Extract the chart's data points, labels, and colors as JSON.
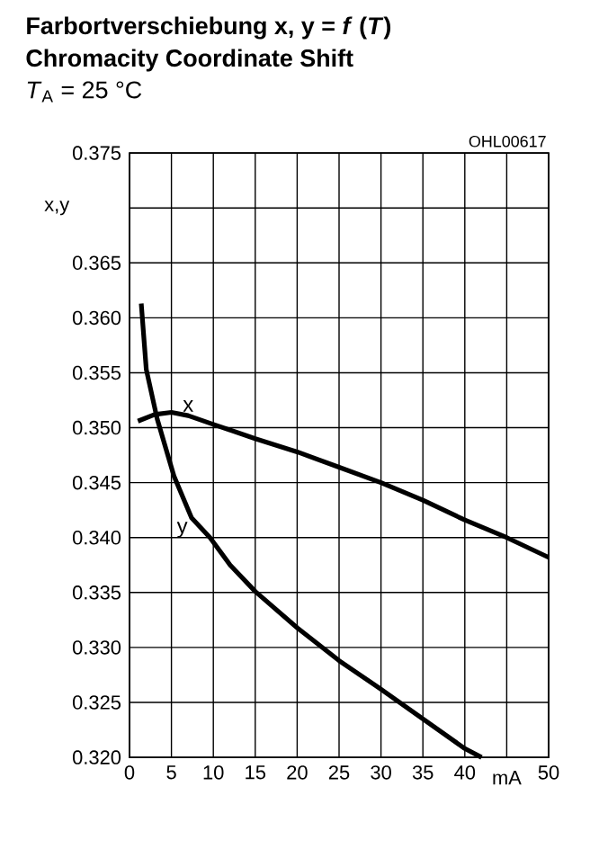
{
  "chart_data": {
    "type": "line",
    "title": "Farbortverschiebung x, y = *f* (*T*)",
    "subtitle": "Chromacity Coordinate Shift",
    "annotations": [
      "*T*$_{A}$ = 25 °C",
      "OHL00617"
    ],
    "xlabel": "mA",
    "ylabel": "x,y",
    "xlim": [
      0,
      50
    ],
    "ylim": [
      0.32,
      0.375
    ],
    "xticks": [
      0,
      5,
      10,
      15,
      20,
      25,
      30,
      35,
      40,
      {
        "value": 45,
        "label": null
      },
      50
    ],
    "yticks": [
      {
        "value": 0.32,
        "label": "0.320"
      },
      0.325,
      {
        "value": 0.33,
        "label": "0.330"
      },
      0.335,
      {
        "value": 0.34,
        "label": "0.340"
      },
      0.345,
      {
        "value": 0.35,
        "label": "0.350"
      },
      0.355,
      {
        "value": 0.36,
        "label": "0.360"
      },
      0.365,
      {
        "value": 0.37,
        "label": null
      },
      0.375
    ],
    "grid": true,
    "legend": false,
    "marker": "none",
    "line_style": "solid",
    "series": [
      {
        "name": "x",
        "color": "#000000",
        "x": [
          1,
          3,
          5,
          7,
          10,
          15,
          20,
          25,
          30,
          35,
          40,
          45,
          50
        ],
        "values": [
          0.3506,
          0.3512,
          0.3514,
          0.3511,
          0.3503,
          0.349,
          0.3478,
          0.3464,
          0.345,
          0.3434,
          0.3416,
          0.34,
          0.3382
        ]
      },
      {
        "name": "y",
        "color": "#000000",
        "x": [
          1.4,
          2,
          3.3,
          5.3,
          7.4,
          9.6,
          12,
          15,
          20,
          25,
          30,
          35,
          40,
          42
        ],
        "values": [
          0.3613,
          0.3553,
          0.3508,
          0.3456,
          0.3418,
          0.34,
          0.3375,
          0.3351,
          0.3318,
          0.3288,
          0.3262,
          0.3235,
          0.3208,
          0.32
        ]
      }
    ]
  }
}
